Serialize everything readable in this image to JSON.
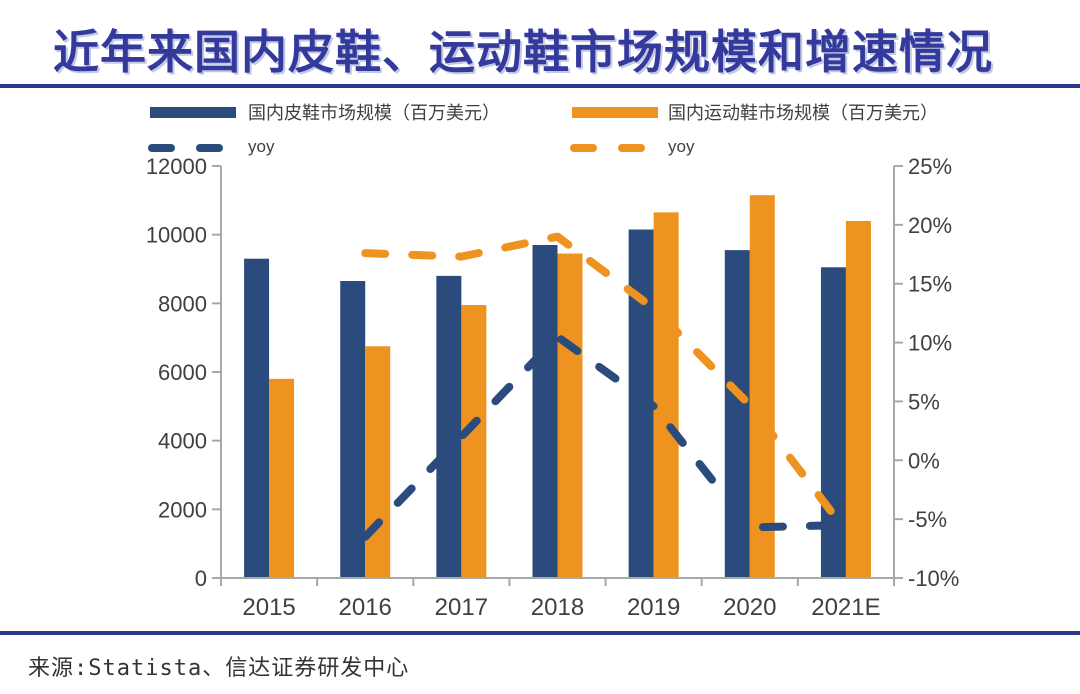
{
  "title": "近年来国内皮鞋、运动鞋市场规模和增速情况",
  "source": "来源:Statista、信达证券研发中心",
  "colors": {
    "navy": "#2B4B7D",
    "orange": "#EE9320",
    "title_blue": "#333A9C",
    "rule_navy": "#2C3790",
    "axis_gray": "#A8A8A8",
    "label_gray": "#404040",
    "legend_text": "#3F3F3F"
  },
  "legend": {
    "leather_bar_label": "国内皮鞋市场规模（百万美元）",
    "sport_bar_label": "国内运动鞋市场规模（百万美元）",
    "leather_yoy_label": "yoy",
    "sport_yoy_label": "yoy"
  },
  "chart_data": {
    "type": "bar",
    "subtype": "grouped bars + dashed yoy lines (dual axis)",
    "categories": [
      "2015",
      "2016",
      "2017",
      "2018",
      "2019",
      "2020",
      "2021E"
    ],
    "series": [
      {
        "key": "leather",
        "name": "国内皮鞋市场规模（百万美元）",
        "type": "bar",
        "axis": "left",
        "color": "#2B4B7D",
        "values": [
          9300,
          8650,
          8800,
          9700,
          10150,
          9550,
          9050
        ]
      },
      {
        "key": "sport",
        "name": "国内运动鞋市场规模（百万美元）",
        "type": "bar",
        "axis": "left",
        "color": "#EE9320",
        "values": [
          5800,
          6750,
          7950,
          9450,
          10650,
          11150,
          10400
        ]
      },
      {
        "key": "leather-yoy",
        "name": "yoy",
        "type": "line",
        "style": "dashed",
        "axis": "right",
        "unit": "%",
        "color": "#2B4B7D",
        "values": [
          null,
          -6.5,
          2.0,
          10.5,
          4.6,
          -5.7,
          -5.5
        ]
      },
      {
        "key": "sport-yoy",
        "name": "yoy",
        "type": "line",
        "style": "dashed",
        "axis": "right",
        "unit": "%",
        "color": "#EE9320",
        "values": [
          null,
          17.6,
          17.3,
          19.0,
          12.9,
          4.7,
          -6.0
        ]
      }
    ],
    "left_axis": {
      "min": 0,
      "max": 12000,
      "step": 2000,
      "ticks": [
        "0",
        "2000",
        "4000",
        "6000",
        "8000",
        "10000",
        "12000"
      ]
    },
    "right_axis": {
      "min": -10,
      "max": 25,
      "step": 5,
      "ticks": [
        "-10%",
        "-5%",
        "0%",
        "5%",
        "10%",
        "15%",
        "20%",
        "25%"
      ]
    },
    "grid": false,
    "legend_position": "top"
  }
}
